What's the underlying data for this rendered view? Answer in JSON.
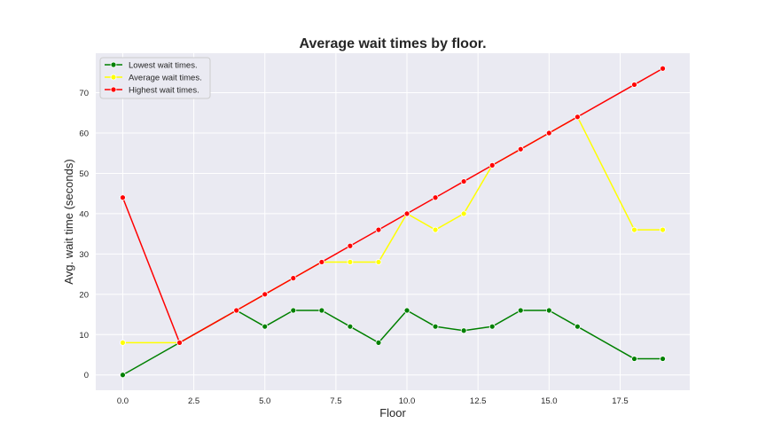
{
  "chart_data": {
    "type": "line",
    "title": "Average wait times by floor.",
    "xlabel": "Floor",
    "ylabel": "Avg. wait time (seconds)",
    "xlim": [
      -0.95,
      19.95
    ],
    "ylim": [
      -3.8,
      79.8
    ],
    "x_ticks": [
      0.0,
      2.5,
      5.0,
      7.5,
      10.0,
      12.5,
      15.0,
      17.5
    ],
    "x_tick_labels": [
      "0.0",
      "2.5",
      "5.0",
      "7.5",
      "10.0",
      "12.5",
      "15.0",
      "17.5"
    ],
    "y_ticks": [
      0,
      10,
      20,
      30,
      40,
      50,
      60,
      70
    ],
    "y_tick_labels": [
      "0",
      "10",
      "20",
      "30",
      "40",
      "50",
      "60",
      "70"
    ],
    "grid": true,
    "legend_position": "top-left",
    "background": "#eaeaf2",
    "series": [
      {
        "name": "Lowest wait times.",
        "color": "#008000",
        "x": [
          0,
          2,
          4,
          5,
          6,
          7,
          8,
          9,
          10,
          11,
          12,
          13,
          14,
          15,
          16,
          18,
          19
        ],
        "y": [
          0,
          8,
          16,
          12,
          16,
          16,
          12,
          8,
          16,
          12,
          11,
          12,
          16,
          16,
          12,
          4,
          4
        ]
      },
      {
        "name": "Average wait times.",
        "color": "#ffff00",
        "x": [
          0,
          2,
          4,
          5,
          6,
          7,
          8,
          9,
          10,
          11,
          12,
          13,
          14,
          15,
          16,
          18,
          19
        ],
        "y": [
          8,
          8,
          16,
          20,
          24,
          28,
          28,
          28,
          40,
          36,
          40,
          52,
          56,
          60,
          64,
          36,
          36
        ]
      },
      {
        "name": "Highest wait times.",
        "color": "#ff0000",
        "x": [
          0,
          2,
          4,
          5,
          6,
          7,
          8,
          9,
          10,
          11,
          12,
          13,
          14,
          15,
          16,
          18,
          19
        ],
        "y": [
          44,
          8,
          16,
          20,
          24,
          28,
          32,
          36,
          40,
          44,
          48,
          52,
          56,
          60,
          64,
          72,
          76
        ]
      }
    ]
  }
}
